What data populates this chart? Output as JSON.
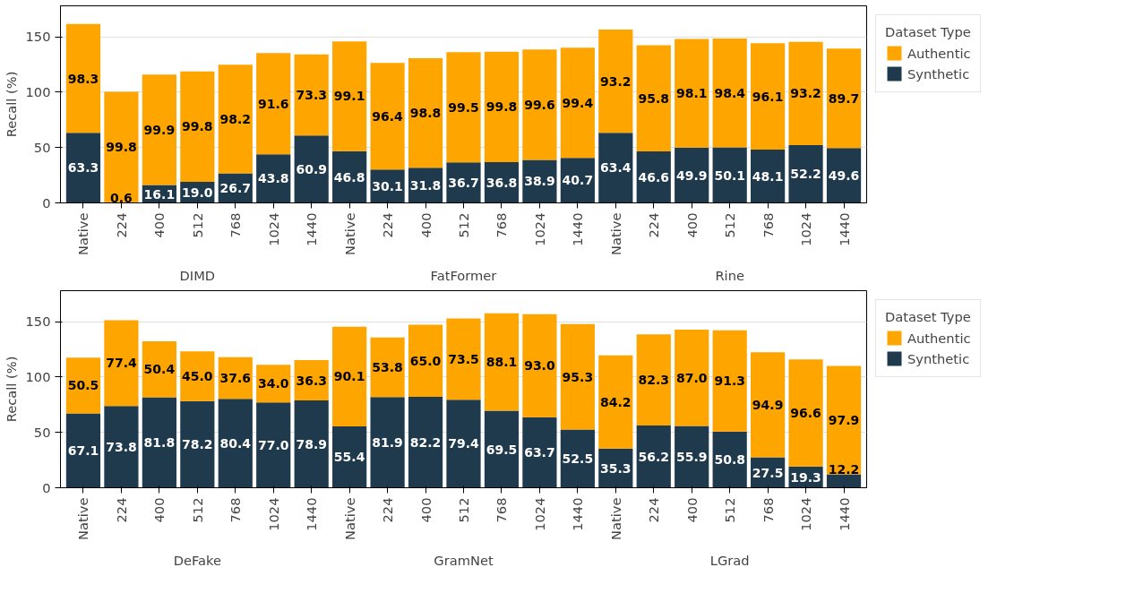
{
  "chart_data": [
    {
      "type": "bar",
      "stacked": true,
      "ylabel": "Recall (%)",
      "legend_title": "Dataset Type",
      "legend": "top right",
      "grid": "y",
      "categories": [
        "Native",
        "224",
        "400",
        "512",
        "768",
        "1024",
        "1440",
        "Native",
        "224",
        "400",
        "512",
        "768",
        "1024",
        "1440",
        "Native",
        "224",
        "400",
        "512",
        "768",
        "1024",
        "1440"
      ],
      "annotations": [
        "DIMD",
        "FatFormer",
        "Rine"
      ],
      "ylim": [
        0,
        178
      ],
      "yticks": [
        0,
        50,
        100,
        150
      ],
      "series": [
        {
          "name": "Synthetic",
          "color": "#1f3a4d",
          "values": [
            63.3,
            0.6,
            16.1,
            19.0,
            26.7,
            43.8,
            60.9,
            46.8,
            30.1,
            31.8,
            36.7,
            36.8,
            38.9,
            40.7,
            63.4,
            46.6,
            49.9,
            50.1,
            48.1,
            52.2,
            49.6
          ],
          "value_labels": [
            "63.3",
            "0.6",
            "16.1",
            "19.0",
            "26.7",
            "43.8",
            "60.9",
            "46.8",
            "30.1",
            "31.8",
            "36.7",
            "36.8",
            "38.9",
            "40.7",
            "63.4",
            "46.6",
            "49.9",
            "50.1",
            "48.1",
            "52.2",
            "49.6"
          ]
        },
        {
          "name": "Authentic",
          "color": "#ffa500",
          "values": [
            98.3,
            99.8,
            99.9,
            99.8,
            98.2,
            91.6,
            73.3,
            99.1,
            96.4,
            98.8,
            99.5,
            99.8,
            99.6,
            99.4,
            93.2,
            95.8,
            98.1,
            98.4,
            96.1,
            93.2,
            89.7
          ],
          "value_labels": [
            "98.3",
            "99.8",
            "99.9",
            "99.8",
            "98.2",
            "91.6",
            "73.3",
            "99.1",
            "96.4",
            "98.8",
            "99.5",
            "99.8",
            "99.6",
            "99.4",
            "93.2",
            "95.8",
            "98.1",
            "98.4",
            "96.1",
            "93.2",
            "89.7"
          ]
        }
      ]
    },
    {
      "type": "bar",
      "stacked": true,
      "ylabel": "Recall (%)",
      "legend_title": "Dataset Type",
      "legend": "top right",
      "grid": "y",
      "categories": [
        "Native",
        "224",
        "400",
        "512",
        "768",
        "1024",
        "1440",
        "Native",
        "224",
        "400",
        "512",
        "768",
        "1024",
        "1440",
        "Native",
        "224",
        "400",
        "512",
        "768",
        "1024",
        "1440"
      ],
      "annotations": [
        "DeFake",
        "GramNet",
        "LGrad"
      ],
      "ylim": [
        0,
        178
      ],
      "yticks": [
        0,
        50,
        100,
        150
      ],
      "series": [
        {
          "name": "Synthetic",
          "color": "#1f3a4d",
          "values": [
            67.1,
            73.8,
            81.8,
            78.2,
            80.4,
            77.0,
            78.9,
            55.4,
            81.9,
            82.2,
            79.4,
            69.5,
            63.7,
            52.5,
            35.3,
            56.2,
            55.9,
            50.8,
            27.5,
            19.3,
            12.2
          ],
          "value_labels": [
            "67.1",
            "73.8",
            "81.8",
            "78.2",
            "80.4",
            "77.0",
            "78.9",
            "55.4",
            "81.9",
            "82.2",
            "79.4",
            "69.5",
            "63.7",
            "52.5",
            "35.3",
            "56.2",
            "55.9",
            "50.8",
            "27.5",
            "19.3",
            "12.2"
          ]
        },
        {
          "name": "Authentic",
          "color": "#ffa500",
          "values": [
            50.5,
            77.4,
            50.4,
            45.0,
            37.6,
            34.0,
            36.3,
            90.1,
            53.8,
            65.0,
            73.5,
            88.1,
            93.0,
            95.3,
            84.2,
            82.3,
            87.0,
            91.3,
            94.9,
            96.6,
            97.9
          ],
          "value_labels": [
            "50.5",
            "77.4",
            "50.4",
            "45.0",
            "37.6",
            "34.0",
            "36.3",
            "90.1",
            "53.8",
            "65.0",
            "73.5",
            "88.1",
            "93.0",
            "95.3",
            "84.2",
            "82.3",
            "87.0",
            "91.3",
            "94.9",
            "96.6",
            "97.9"
          ]
        }
      ]
    }
  ]
}
